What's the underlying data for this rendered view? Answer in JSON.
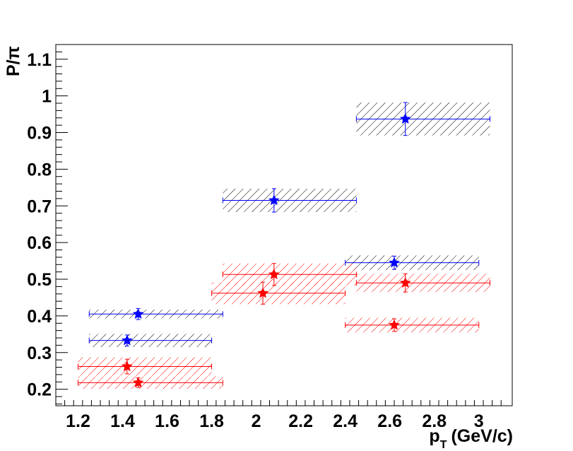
{
  "chart_data": {
    "type": "scatter",
    "title": "",
    "xlabel": "p_T (GeV/c)",
    "xlabel_main": "p",
    "xlabel_sub": "T",
    "xlabel_unit": "(GeV/c)",
    "ylabel": "P/π",
    "xlim": [
      1.1,
      3.15
    ],
    "ylim": [
      0.155,
      1.14
    ],
    "grid": false,
    "legend": "none",
    "x_ticks": [
      1.2,
      1.4,
      1.6,
      1.8,
      2.0,
      2.2,
      2.4,
      2.6,
      2.8,
      3.0
    ],
    "x_tick_labels": [
      "1.2",
      "1.4",
      "1.6",
      "1.8",
      "2",
      "2.2",
      "2.4",
      "2.6",
      "2.8",
      "3"
    ],
    "y_ticks": [
      0.2,
      0.3,
      0.4,
      0.5,
      0.6,
      0.7,
      0.8,
      0.9,
      1.0,
      1.1
    ],
    "y_tick_labels": [
      "0.2",
      "0.3",
      "0.4",
      "0.5",
      "0.6",
      "0.7",
      "0.8",
      "0.9",
      "1",
      "1.1"
    ],
    "series": [
      {
        "color": "#0000ff",
        "hatch_color": "#000000",
        "points": [
          {
            "x": 1.42,
            "y": 0.333,
            "xlo": 1.25,
            "xhi": 1.8,
            "yerr": 0.015,
            "sys": 0.018
          },
          {
            "x": 1.47,
            "y": 0.405,
            "xlo": 1.25,
            "xhi": 1.85,
            "yerr": 0.015,
            "sys": 0.012
          },
          {
            "x": 2.08,
            "y": 0.715,
            "xlo": 1.85,
            "xhi": 2.45,
            "yerr": 0.032,
            "sys": 0.032
          },
          {
            "x": 2.62,
            "y": 0.545,
            "xlo": 2.4,
            "xhi": 3.0,
            "yerr": 0.018,
            "sys": 0.02
          },
          {
            "x": 2.67,
            "y": 0.937,
            "xlo": 2.45,
            "xhi": 3.05,
            "yerr": 0.045,
            "sys": 0.045
          }
        ]
      },
      {
        "color": "#ff0000",
        "hatch_color": "#ff0000",
        "points": [
          {
            "x": 1.42,
            "y": 0.262,
            "xlo": 1.2,
            "xhi": 1.8,
            "yerr": 0.02,
            "sys": 0.025
          },
          {
            "x": 1.47,
            "y": 0.218,
            "xlo": 1.2,
            "xhi": 1.85,
            "yerr": 0.013,
            "sys": 0.017
          },
          {
            "x": 2.03,
            "y": 0.462,
            "xlo": 1.8,
            "xhi": 2.4,
            "yerr": 0.03,
            "sys": 0.03
          },
          {
            "x": 2.08,
            "y": 0.513,
            "xlo": 1.85,
            "xhi": 2.45,
            "yerr": 0.03,
            "sys": 0.03
          },
          {
            "x": 2.62,
            "y": 0.375,
            "xlo": 2.4,
            "xhi": 3.0,
            "yerr": 0.017,
            "sys": 0.02
          },
          {
            "x": 2.67,
            "y": 0.49,
            "xlo": 2.45,
            "xhi": 3.05,
            "yerr": 0.025,
            "sys": 0.025
          }
        ]
      }
    ]
  }
}
